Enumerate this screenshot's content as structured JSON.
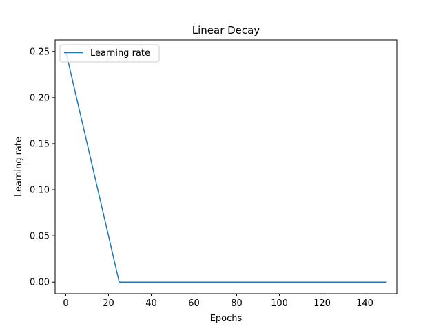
{
  "chart_data": {
    "type": "line",
    "title": "Linear Decay",
    "xlabel": "Epochs",
    "ylabel": "Learning rate",
    "xlim": [
      -5,
      155
    ],
    "ylim": [
      -0.0125,
      0.2625
    ],
    "xticks": [
      0,
      20,
      40,
      60,
      80,
      100,
      120,
      140
    ],
    "xtick_labels": [
      "0",
      "20",
      "40",
      "60",
      "80",
      "100",
      "120",
      "140"
    ],
    "yticks": [
      0.0,
      0.05,
      0.1,
      0.15,
      0.2,
      0.25
    ],
    "ytick_labels": [
      "0.00",
      "0.05",
      "0.10",
      "0.15",
      "0.20",
      "0.25"
    ],
    "grid": false,
    "legend_position": "upper-left",
    "series": [
      {
        "name": "Learning rate",
        "color": "#1f77b4",
        "x": [
          0,
          25,
          150
        ],
        "y": [
          0.25,
          0.0,
          0.0
        ]
      }
    ]
  }
}
